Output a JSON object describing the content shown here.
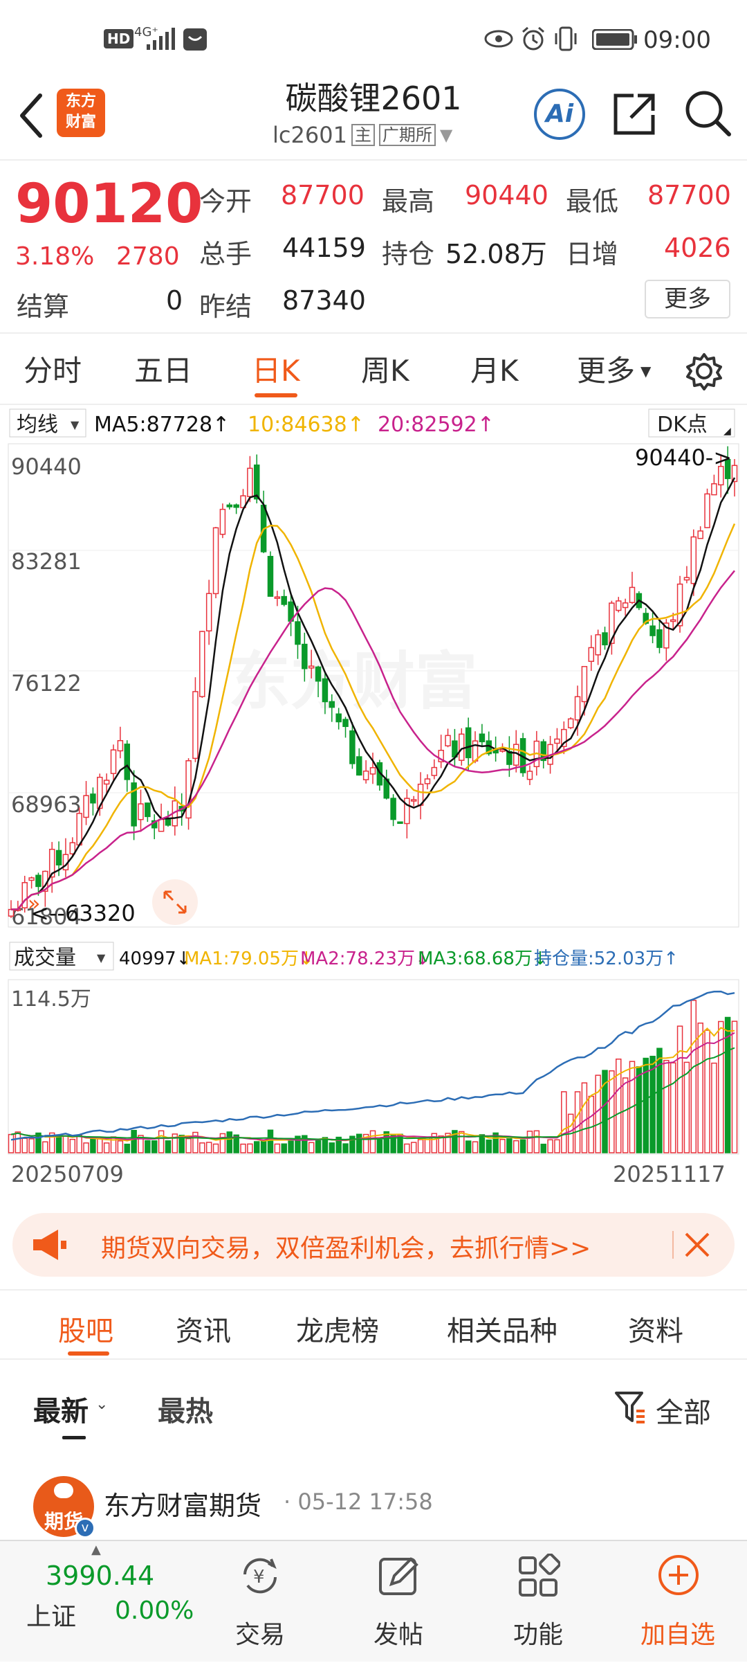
{
  "status_bar": {
    "hd": "HD",
    "net": "4G⁺",
    "time": "09:00"
  },
  "header": {
    "logo_line1": "东方",
    "logo_line2": "财富",
    "title": "碳酸锂2601",
    "code": "lc2601",
    "main_tag": "主",
    "exchange_tag": "广期所",
    "ai_label": "Ai"
  },
  "quote": {
    "price": "90120",
    "change_pct": "3.18%",
    "change": "2780",
    "open_label": "今开",
    "open": "87700",
    "high_label": "最高",
    "high": "90440",
    "low_label": "最低",
    "low": "87700",
    "volume_label": "总手",
    "volume": "44159",
    "position_label": "持仓",
    "position": "52.08万",
    "daily_inc_label": "日增",
    "daily_inc": "4026",
    "settle_label": "结算",
    "settle": "0",
    "prev_settle_label": "昨结",
    "prev_settle": "87340",
    "more": "更多"
  },
  "tabs": {
    "t1": "分时",
    "t2": "五日",
    "t3": "日K",
    "t4": "周K",
    "t5": "月K",
    "t6": "更多"
  },
  "kline_legend": {
    "ma_select": "均线",
    "ma5": "MA5:87728↑",
    "ma10": "10:84638↑",
    "ma20": "20:82592↑",
    "dk": "DK点"
  },
  "kline_axis": {
    "y1": "90440",
    "y2": "83281",
    "y3": "76122",
    "y4": "68963",
    "y5": "61804",
    "max_label": "90440->",
    "min_label": "<--63320"
  },
  "volume_legend": {
    "select": "成交量",
    "vol": "40997↓",
    "ma1": "MA1:79.05万↓",
    "ma2": "MA2:78.23万↓",
    "ma3": "MA3:68.68万↓",
    "oi": "持仓量:52.03万↑"
  },
  "volume_axis": {
    "top": "114.5万",
    "date_start": "20250709",
    "date_end": "20251117"
  },
  "colors": {
    "up": "#e8323c",
    "down": "#0a9a2a",
    "ma5": "#111111",
    "ma10": "#f0b400",
    "ma20": "#c8228c",
    "oi": "#2c6db5",
    "accent": "#f05a1a"
  },
  "banner": {
    "text": "期货双向交易，双倍盈利机会，去抓行情>>"
  },
  "subtabs": {
    "s1": "股吧",
    "s2": "资讯",
    "s3": "龙虎榜",
    "s4": "相关品种",
    "s5": "资料"
  },
  "feed": {
    "sort_latest": "最新",
    "sort_hot": "最热",
    "filter": "全部",
    "post_author": "东方财富期货",
    "post_time": "· 05-12 17:58",
    "avatar_text": "期货"
  },
  "bottom_nav": {
    "index_value": "3990.44",
    "index_name": "上证",
    "index_change": "0.00%",
    "trade": "交易",
    "post": "发帖",
    "func": "功能",
    "add": "加自选"
  }
}
